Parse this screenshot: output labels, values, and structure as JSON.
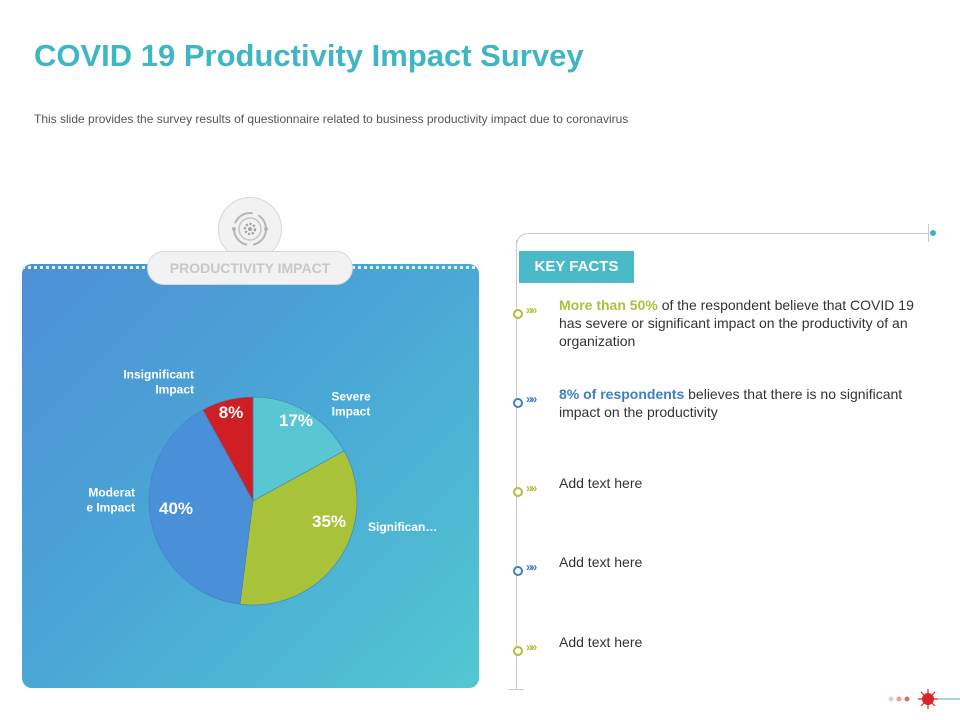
{
  "slide": {
    "title": "COVID 19 Productivity Impact Survey",
    "subtitle": "This slide provides  the survey results of questionnaire related to business productivity  impact due to coronavirus"
  },
  "panel": {
    "label": "PRODUCTIVITY IMPACT"
  },
  "chart_data": {
    "type": "pie",
    "title": "PRODUCTIVITY IMPACT",
    "start_angle_deg": 0,
    "direction": "clockwise",
    "slices": [
      {
        "label": "Severe\nImpact",
        "value": 17,
        "display": "17%",
        "color": "#58c7d2",
        "pct_color": "#ffffff"
      },
      {
        "label": "Significan…",
        "value": 35,
        "display": "35%",
        "color": "#a8c23a",
        "pct_color": "#ffffff"
      },
      {
        "label": "Moderat\ne Impact",
        "value": 40,
        "display": "40%",
        "color": "#4a90d9",
        "pct_color": "#ffffff"
      },
      {
        "label": "Insignificant\nImpact",
        "value": 8,
        "display": "8%",
        "color": "#cf1f25",
        "pct_color": "#ffffff"
      }
    ]
  },
  "key_facts": {
    "heading": "KEY FACTS",
    "chevron": "»»",
    "items": [
      {
        "highlight": "More than 50%",
        "text": " of the respondent believe that COVID 19 has severe or significant impact on the productivity of an organization",
        "accent": "green"
      },
      {
        "highlight": "8% of respondents",
        "text": " believes that there is no significant impact on the productivity",
        "accent": "blue"
      },
      {
        "highlight": "",
        "text": "Add text here",
        "accent": "green"
      },
      {
        "highlight": "",
        "text": "Add text here",
        "accent": "blue"
      },
      {
        "highlight": "",
        "text": "Add text here",
        "accent": "green"
      }
    ]
  },
  "icons": {
    "panel_icon": "gear-cycle-icon",
    "corner_icon": "virus-icon"
  },
  "colors": {
    "title": "#3fb6c3",
    "accent_green": "#a8c23a",
    "accent_blue": "#3d7fc1",
    "badge": "#4bbac8",
    "virus": "#d8262c"
  }
}
